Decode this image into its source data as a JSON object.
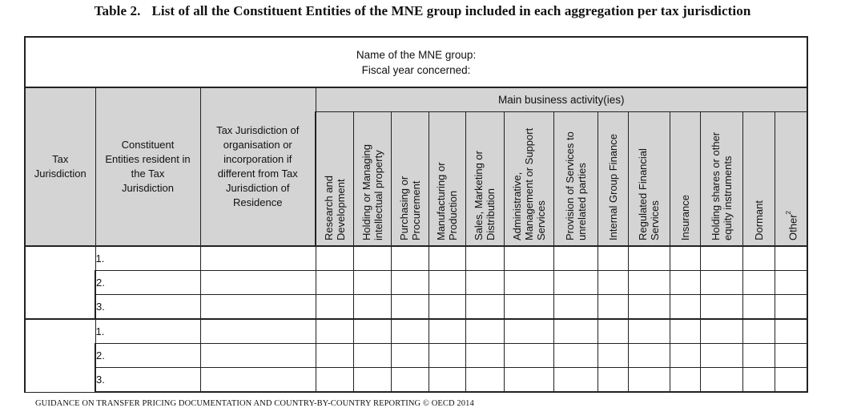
{
  "caption": {
    "number": "Table 2.",
    "title": "List of all the Constituent Entities of the MNE group included in each aggregation per tax jurisdiction"
  },
  "group_info": {
    "name_label": "Name of the MNE group:",
    "fiscal_year_label": "Fiscal year concerned:"
  },
  "headers": {
    "tax_jurisdiction": "Tax Jurisdiction",
    "constituent_entities": "Constituent Entities resident in the Tax Jurisdiction",
    "tax_jurisdiction_org": "Tax Jurisdiction of organisation or incorporation if different from Tax Jurisdiction of Residence",
    "main_business": "Main business activity(ies)"
  },
  "activities": [
    {
      "label": "Research and Development"
    },
    {
      "label": "Holding or Managing intellectual property"
    },
    {
      "label": "Purchasing or Procurement"
    },
    {
      "label": "Manufacturing or Production"
    },
    {
      "label": "Sales, Marketing or Distribution"
    },
    {
      "label": "Administrative, Management or Support Services"
    },
    {
      "label": "Provision of Services to unrelated parties"
    },
    {
      "label": "Internal Group Finance"
    },
    {
      "label": "Regulated Financial Services"
    },
    {
      "label": "Insurance"
    },
    {
      "label": "Holding shares or other equity instruments"
    },
    {
      "label": "Dormant"
    },
    {
      "label": "Other",
      "sup": "2"
    }
  ],
  "rows": [
    {
      "group": 1,
      "number": "1."
    },
    {
      "group": 1,
      "number": "2."
    },
    {
      "group": 1,
      "number": "3."
    },
    {
      "group": 2,
      "number": "1."
    },
    {
      "group": 2,
      "number": "2."
    },
    {
      "group": 2,
      "number": "3."
    }
  ],
  "footer": "GUIDANCE ON TRANSFER PRICING DOCUMENTATION AND COUNTRY-BY-COUNTRY REPORTING © OECD 2014"
}
